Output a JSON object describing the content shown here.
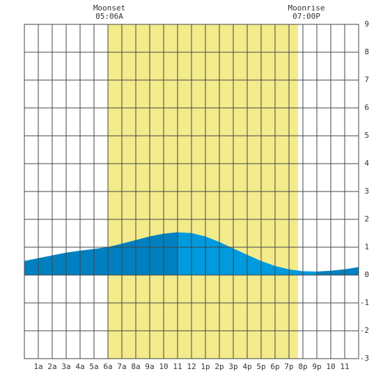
{
  "chart_data": {
    "type": "area",
    "x": [
      0,
      1,
      2,
      3,
      4,
      5,
      6,
      7,
      8,
      9,
      10,
      11,
      12,
      13,
      14,
      15,
      16,
      17,
      18,
      19,
      20,
      21,
      22,
      23,
      24
    ],
    "values": [
      0.5,
      0.6,
      0.7,
      0.8,
      0.87,
      0.93,
      1.0,
      1.12,
      1.25,
      1.38,
      1.48,
      1.53,
      1.5,
      1.38,
      1.18,
      0.95,
      0.72,
      0.5,
      0.32,
      0.2,
      0.13,
      0.12,
      0.15,
      0.2,
      0.28
    ],
    "rise_color": "#0080c0",
    "fall_color": "#009ade",
    "daylight_color": "#f3eb8c",
    "daylight": [
      6,
      19.65
    ],
    "xlim": [
      0,
      24
    ],
    "ylim": [
      -3,
      9
    ],
    "xticks": [
      {
        "value": 1,
        "label": "1a"
      },
      {
        "value": 2,
        "label": "2a"
      },
      {
        "value": 3,
        "label": "3a"
      },
      {
        "value": 4,
        "label": "4a"
      },
      {
        "value": 5,
        "label": "5a"
      },
      {
        "value": 6,
        "label": "6a"
      },
      {
        "value": 7,
        "label": "7a"
      },
      {
        "value": 8,
        "label": "8a"
      },
      {
        "value": 9,
        "label": "9a"
      },
      10,
      11,
      12,
      {
        "value": 13,
        "label": "1p"
      },
      {
        "value": 14,
        "label": "2p"
      },
      {
        "value": 15,
        "label": "3p"
      },
      {
        "value": 16,
        "label": "4p"
      },
      {
        "value": 17,
        "label": "5p"
      },
      {
        "value": 18,
        "label": "6p"
      },
      {
        "value": 19,
        "label": "7p"
      },
      {
        "value": 20,
        "label": "8p"
      },
      {
        "value": 21,
        "label": "9p"
      },
      {
        "value": 22,
        "label": "10"
      },
      {
        "value": 23,
        "label": "11"
      }
    ],
    "yticks": [
      -3,
      -2,
      -1,
      0,
      1,
      2,
      3,
      4,
      5,
      6,
      7,
      8,
      9
    ],
    "annotations": [
      {
        "label": "Moonset",
        "time": "05:06A"
      },
      {
        "label": "Moonrise",
        "time": "07:00P"
      }
    ]
  }
}
